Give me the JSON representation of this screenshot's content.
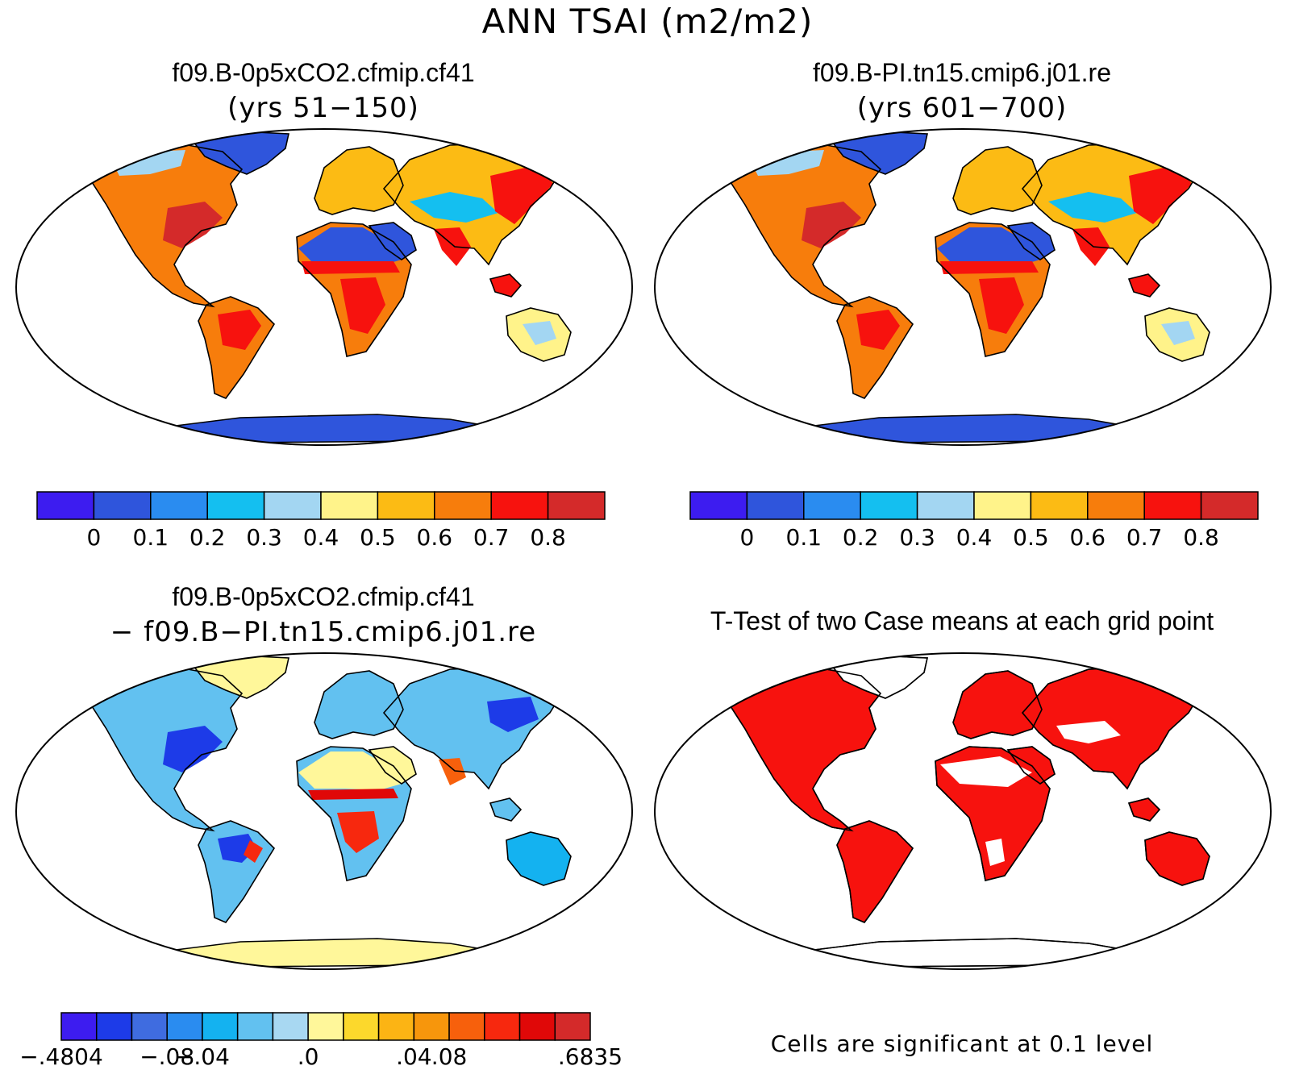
{
  "figure": {
    "title": "ANN TSAI (m2/m2)"
  },
  "panels": [
    {
      "id": "case1",
      "title": "f09.B-0p5xCO2.cfmip.cf41",
      "subtitle": "(yrs 51−150)",
      "type": "field",
      "fill": "mean"
    },
    {
      "id": "case2",
      "title": "f09.B-PI.tn15.cmip6.j01.re",
      "subtitle": "(yrs 601−700)",
      "type": "field",
      "fill": "mean"
    },
    {
      "id": "diff",
      "title": "f09.B-0p5xCO2.cfmip.cf41",
      "subtitle": "− f09.B−PI.tn15.cmip6.j01.re",
      "type": "field",
      "fill": "diff"
    },
    {
      "id": "ttest",
      "title": "T-Test of two Case means at each grid point",
      "subtitle": "",
      "type": "significance",
      "note": "Cells are significant at 0.1 level"
    }
  ],
  "colorbars": {
    "mean": {
      "colors": [
        "#3d1cf0",
        "#2f55dc",
        "#2a8cf0",
        "#14bff0",
        "#a3d6f2",
        "#fff38a",
        "#fcbb14",
        "#f77d0c",
        "#f7120e",
        "#d42a2a"
      ],
      "labels": [
        "0",
        "0.1",
        "0.2",
        "0.3",
        "0.4",
        "0.5",
        "0.6",
        "0.7",
        "0.8"
      ]
    },
    "diff": {
      "colors": [
        "#3d1cf0",
        "#1d3be8",
        "#3f6ce0",
        "#2a8cf0",
        "#14b2f0",
        "#62c1f0",
        "#a8d8f2",
        "#fff79a",
        "#fcd82c",
        "#fcb414",
        "#f7960c",
        "#f7600c",
        "#f7280e",
        "#e00808",
        "#d42a2a"
      ],
      "labels": [
        "−.4804",
        "−.08",
        "−.04",
        ".0",
        ".04",
        ".08",
        ".6835"
      ]
    }
  }
}
